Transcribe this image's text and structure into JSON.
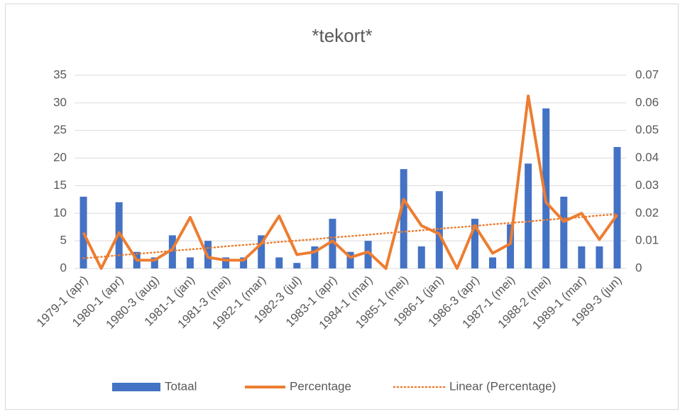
{
  "chart_data": {
    "type": "bar-line",
    "title": "*tekort*",
    "categories": [
      "1979-1 (apr)",
      null,
      "1980-1 (apr)",
      null,
      "1980-3 (aug)",
      null,
      "1981-1 (jan)",
      null,
      "1981-3 (mei)",
      null,
      "1982-1 (mar)",
      null,
      "1982-3 (jul)",
      null,
      "1983-1 (apr)",
      null,
      "1984-1 (mar)",
      null,
      "1985-1 (mei)",
      null,
      "1986-1 (jan)",
      null,
      "1986-3 (apr)",
      null,
      "1987-1 (mei)",
      null,
      "1988-2 (mei)",
      null,
      "1989-1 (mar)",
      null,
      "1989-3 (jun)"
    ],
    "series": [
      {
        "name": "Totaal",
        "type": "bar",
        "color": "#4472c4",
        "values": [
          13,
          0,
          12,
          3,
          2,
          6,
          2,
          5,
          2,
          2,
          6,
          2,
          1,
          4,
          9,
          3,
          5,
          0,
          18,
          4,
          14,
          0,
          9,
          2,
          8,
          19,
          29,
          13,
          4,
          4,
          22
        ]
      },
      {
        "name": "Percentage",
        "type": "line",
        "axis": "y2",
        "color": "#ed7d31",
        "values": [
          0.013,
          0,
          0.013,
          0.003,
          0.003,
          0.007,
          0.0185,
          0.004,
          0.003,
          0.003,
          0.009,
          0.019,
          0.005,
          0.006,
          0.01,
          0.004,
          0.006,
          0,
          0.025,
          0.0155,
          0.0125,
          0,
          0.0155,
          0.0055,
          0.009,
          0.0625,
          0.024,
          0.017,
          0.02,
          0.0105,
          0.0195
        ]
      },
      {
        "name": "Linear (Percentage)",
        "type": "dotted-line",
        "axis": "y2",
        "color": "#ed7d31",
        "values": [
          0.0037,
          0.0042,
          0.0048,
          0.0053,
          0.0058,
          0.0064,
          0.0069,
          0.0074,
          0.008,
          0.0085,
          0.009,
          0.0096,
          0.0101,
          0.0106,
          0.0112,
          0.0117,
          0.0122,
          0.0128,
          0.0133,
          0.0138,
          0.0144,
          0.0149,
          0.0154,
          0.016,
          0.0165,
          0.017,
          0.0176,
          0.0181,
          0.0186,
          0.0192,
          0.0197
        ]
      }
    ],
    "ylim": [
      0,
      35
    ],
    "yticks": [
      0,
      5,
      10,
      15,
      20,
      25,
      30,
      35
    ],
    "y2lim": [
      0,
      0.07
    ],
    "y2ticks": [
      0,
      0.01,
      0.02,
      0.03,
      0.04,
      0.05,
      0.06,
      0.07
    ],
    "grid": true,
    "legend": "bottom"
  }
}
